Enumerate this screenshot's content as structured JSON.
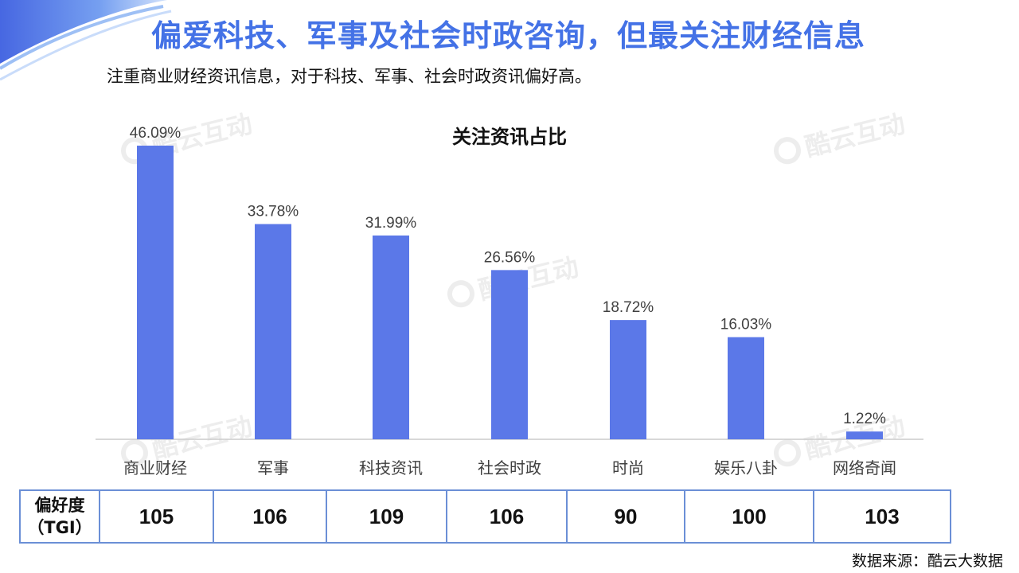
{
  "headline": "偏爱科技、军事及社会时政咨询，但最关注财经信息",
  "subhead": "注重商业财经资讯信息，对于科技、军事、社会时政资讯偏好高。",
  "watermark": "酷云互动",
  "colors": {
    "bar": "#5b78e8",
    "headline": "#4472e6",
    "axis": "#cccccc",
    "table_border": "#6b8fd6"
  },
  "chart_data": {
    "type": "bar",
    "title": "关注资讯占比",
    "categories": [
      "商业财经",
      "军事",
      "科技资讯",
      "社会时政",
      "时尚",
      "娱乐八卦",
      "网络奇闻"
    ],
    "values": [
      46.09,
      33.78,
      31.99,
      26.56,
      18.72,
      16.03,
      1.22
    ],
    "value_labels": [
      "46.09%",
      "33.78%",
      "31.99%",
      "26.56%",
      "18.72%",
      "16.03%",
      "1.22%"
    ],
    "ylim": [
      0,
      46.09
    ],
    "grid": false,
    "legend": false
  },
  "tgi": {
    "label_line1": "偏好度",
    "label_line2": "（TGI）",
    "values": [
      "105",
      "106",
      "109",
      "106",
      "90",
      "100",
      "103"
    ]
  },
  "source": "数据来源：酷云大数据"
}
